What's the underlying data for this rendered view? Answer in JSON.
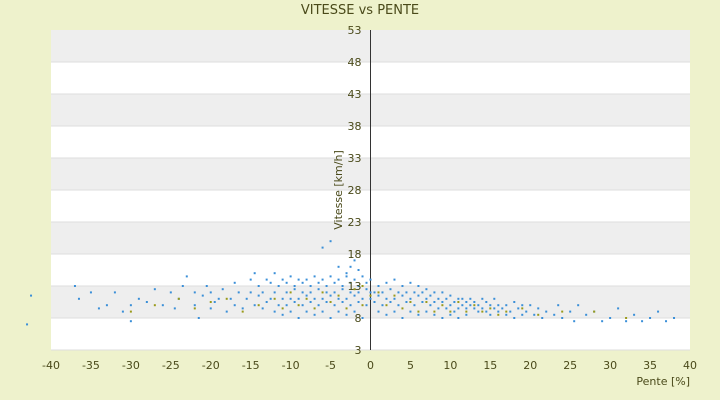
{
  "chart_data": {
    "type": "scatter",
    "title": "VITESSE vs PENTE",
    "xlabel": "Pente [%]",
    "ylabel": "Vitesse [km/h]",
    "xlim": [
      -40,
      40
    ],
    "ylim": [
      3,
      53
    ],
    "x_ticks": [
      "-40",
      "-35",
      "-30",
      "-25",
      "-20",
      "-15",
      "-10",
      "-5",
      "0",
      "5",
      "10",
      "15",
      "20",
      "25",
      "30",
      "35",
      "40"
    ],
    "y_ticks": [
      "3",
      "8",
      "13",
      "18",
      "23",
      "28",
      "33",
      "38",
      "43",
      "48",
      "53"
    ],
    "grid": true,
    "legend": "none",
    "series": [
      {
        "color": "#3a8fd8",
        "points": [
          [
            -43,
            7
          ],
          [
            -42.5,
            11.5
          ],
          [
            -37,
            13
          ],
          [
            -36.5,
            11
          ],
          [
            -35,
            12
          ],
          [
            -34,
            9.5
          ],
          [
            -33,
            10
          ],
          [
            -32,
            12
          ],
          [
            -31,
            9
          ],
          [
            -30,
            7.5
          ],
          [
            -30,
            10
          ],
          [
            -29,
            11
          ],
          [
            -28,
            10.5
          ],
          [
            -27,
            12.5
          ],
          [
            -26,
            10
          ],
          [
            -25,
            12
          ],
          [
            -24.5,
            9.5
          ],
          [
            -24,
            11
          ],
          [
            -23.5,
            13
          ],
          [
            -23,
            14.5
          ],
          [
            -22,
            12
          ],
          [
            -22,
            10
          ],
          [
            -21.5,
            8
          ],
          [
            -21,
            11.5
          ],
          [
            -20.5,
            13
          ],
          [
            -20,
            9.5
          ],
          [
            -20,
            12
          ],
          [
            -19.5,
            10.5
          ],
          [
            -19,
            11
          ],
          [
            -18.5,
            12.5
          ],
          [
            -18,
            9
          ],
          [
            -17.5,
            11
          ],
          [
            -17,
            13.5
          ],
          [
            -17,
            10
          ],
          [
            -16.5,
            12
          ],
          [
            -16,
            9.5
          ],
          [
            -15.5,
            11
          ],
          [
            -15,
            14
          ],
          [
            -15,
            12
          ],
          [
            -14.5,
            10
          ],
          [
            -14.5,
            15
          ],
          [
            -14,
            11.5
          ],
          [
            -14,
            13
          ],
          [
            -13.5,
            9.5
          ],
          [
            -13.5,
            12
          ],
          [
            -13,
            14
          ],
          [
            -13,
            10.5
          ],
          [
            -12.5,
            11
          ],
          [
            -12.5,
            13.5
          ],
          [
            -12,
            9
          ],
          [
            -12,
            12
          ],
          [
            -12,
            15
          ],
          [
            -11.5,
            10
          ],
          [
            -11.5,
            13
          ],
          [
            -11,
            11
          ],
          [
            -11,
            14
          ],
          [
            -11,
            8.5
          ],
          [
            -10.5,
            12
          ],
          [
            -10.5,
            10
          ],
          [
            -10.5,
            13.5
          ],
          [
            -10,
            11
          ],
          [
            -10,
            14.5
          ],
          [
            -10,
            9
          ],
          [
            -9.5,
            12.5
          ],
          [
            -9.5,
            10.5
          ],
          [
            -9.5,
            13
          ],
          [
            -9,
            11
          ],
          [
            -9,
            14
          ],
          [
            -9,
            8
          ],
          [
            -8.5,
            12
          ],
          [
            -8.5,
            10
          ],
          [
            -8.5,
            13.5
          ],
          [
            -8,
            11.5
          ],
          [
            -8,
            9
          ],
          [
            -8,
            14
          ],
          [
            -7.5,
            12
          ],
          [
            -7.5,
            10.5
          ],
          [
            -7.5,
            13
          ],
          [
            -7,
            11
          ],
          [
            -7,
            8.5
          ],
          [
            -7,
            14.5
          ],
          [
            -6.5,
            12.5
          ],
          [
            -6.5,
            10
          ],
          [
            -6.5,
            13.5
          ],
          [
            -6,
            11
          ],
          [
            -6,
            9
          ],
          [
            -6,
            14
          ],
          [
            -6,
            19
          ],
          [
            -5.5,
            12
          ],
          [
            -5.5,
            10.5
          ],
          [
            -5.5,
            13
          ],
          [
            -5,
            11.5
          ],
          [
            -5,
            8
          ],
          [
            -5,
            14.5
          ],
          [
            -5,
            20
          ],
          [
            -4.5,
            12
          ],
          [
            -4.5,
            10
          ],
          [
            -4.5,
            13.5
          ],
          [
            -4,
            11
          ],
          [
            -4,
            9
          ],
          [
            -4,
            14
          ],
          [
            -4,
            16
          ],
          [
            -3.5,
            12.5
          ],
          [
            -3.5,
            10.5
          ],
          [
            -3.5,
            13
          ],
          [
            -3,
            11
          ],
          [
            -3,
            8.5
          ],
          [
            -3,
            14.5
          ],
          [
            -3,
            15
          ],
          [
            -2.5,
            12
          ],
          [
            -2.5,
            10
          ],
          [
            -2.5,
            13.5
          ],
          [
            -2.5,
            16
          ],
          [
            -2,
            11.5
          ],
          [
            -2,
            9
          ],
          [
            -2,
            14
          ],
          [
            -2,
            17
          ],
          [
            -1.5,
            12
          ],
          [
            -1.5,
            10.5
          ],
          [
            -1.5,
            13
          ],
          [
            -1.5,
            15.5
          ],
          [
            -1,
            11
          ],
          [
            -1,
            8
          ],
          [
            -1,
            14.5
          ],
          [
            -1,
            13
          ],
          [
            -0.5,
            12.5
          ],
          [
            -0.5,
            10
          ],
          [
            -0.5,
            13.5
          ],
          [
            0,
            11
          ],
          [
            0,
            14
          ],
          [
            0,
            12
          ],
          [
            0.5,
            12
          ],
          [
            0.5,
            10.5
          ],
          [
            1,
            11.5
          ],
          [
            1,
            13
          ],
          [
            1,
            9
          ],
          [
            1.5,
            12
          ],
          [
            1.5,
            10
          ],
          [
            2,
            11
          ],
          [
            2,
            13.5
          ],
          [
            2,
            8.5
          ],
          [
            2.5,
            12.5
          ],
          [
            2.5,
            10.5
          ],
          [
            3,
            11
          ],
          [
            3,
            14
          ],
          [
            3,
            9
          ],
          [
            3.5,
            12
          ],
          [
            3.5,
            10
          ],
          [
            4,
            11.5
          ],
          [
            4,
            13
          ],
          [
            4,
            8
          ],
          [
            4.5,
            12
          ],
          [
            4.5,
            10.5
          ],
          [
            5,
            11
          ],
          [
            5,
            13.5
          ],
          [
            5,
            9
          ],
          [
            5.5,
            12
          ],
          [
            5.5,
            10
          ],
          [
            6,
            11.5
          ],
          [
            6,
            13
          ],
          [
            6,
            8.5
          ],
          [
            6.5,
            10.5
          ],
          [
            6.5,
            12
          ],
          [
            7,
            11
          ],
          [
            7,
            9
          ],
          [
            7,
            12.5
          ],
          [
            7.5,
            10
          ],
          [
            7.5,
            11.5
          ],
          [
            8,
            10.5
          ],
          [
            8,
            12
          ],
          [
            8,
            8.5
          ],
          [
            8.5,
            11
          ],
          [
            8.5,
            9.5
          ],
          [
            9,
            10.5
          ],
          [
            9,
            12
          ],
          [
            9,
            8
          ],
          [
            9.5,
            11
          ],
          [
            9.5,
            9.5
          ],
          [
            10,
            10
          ],
          [
            10,
            11.5
          ],
          [
            10,
            8.5
          ],
          [
            10.5,
            10.5
          ],
          [
            10.5,
            9
          ],
          [
            11,
            11
          ],
          [
            11,
            9.5
          ],
          [
            11,
            8
          ],
          [
            11.5,
            10
          ],
          [
            11.5,
            11
          ],
          [
            12,
            9.5
          ],
          [
            12,
            10.5
          ],
          [
            12,
            8.5
          ],
          [
            12.5,
            10
          ],
          [
            12.5,
            11
          ],
          [
            13,
            9.5
          ],
          [
            13,
            10.5
          ],
          [
            13.5,
            9
          ],
          [
            13.5,
            10
          ],
          [
            14,
            9.5
          ],
          [
            14,
            11
          ],
          [
            14.5,
            9
          ],
          [
            14.5,
            10.5
          ],
          [
            15,
            10
          ],
          [
            15,
            8.5
          ],
          [
            15.5,
            9.5
          ],
          [
            15.5,
            11
          ],
          [
            16,
            9
          ],
          [
            16,
            10
          ],
          [
            16.5,
            9.5
          ],
          [
            17,
            10
          ],
          [
            17,
            8.5
          ],
          [
            17.5,
            9
          ],
          [
            18,
            10.5
          ],
          [
            18,
            8
          ],
          [
            18.5,
            9.5
          ],
          [
            19,
            10
          ],
          [
            19,
            8.5
          ],
          [
            19.5,
            9
          ],
          [
            20,
            10
          ],
          [
            20.5,
            8.5
          ],
          [
            21,
            9.5
          ],
          [
            21.5,
            8
          ],
          [
            22,
            9
          ],
          [
            23,
            8.5
          ],
          [
            23.5,
            10
          ],
          [
            24,
            8
          ],
          [
            25,
            9
          ],
          [
            25.5,
            7.5
          ],
          [
            26,
            10
          ],
          [
            27,
            8.5
          ],
          [
            28,
            9
          ],
          [
            29,
            7.5
          ],
          [
            30,
            8
          ],
          [
            31,
            9.5
          ],
          [
            32,
            7.5
          ],
          [
            33,
            8.5
          ],
          [
            34,
            7.5
          ],
          [
            35,
            8
          ],
          [
            36,
            9
          ],
          [
            37,
            7.5
          ],
          [
            38,
            8
          ]
        ]
      },
      {
        "color": "#9a9a1a",
        "points": [
          [
            -30,
            9
          ],
          [
            -27,
            10
          ],
          [
            -24,
            11
          ],
          [
            -22,
            9.5
          ],
          [
            -20,
            10.5
          ],
          [
            -18,
            11
          ],
          [
            -16,
            9
          ],
          [
            -14,
            10
          ],
          [
            -12,
            11
          ],
          [
            -11,
            9.5
          ],
          [
            -10,
            12
          ],
          [
            -9,
            10
          ],
          [
            -8,
            11
          ],
          [
            -7,
            9.5
          ],
          [
            -6,
            12
          ],
          [
            -5,
            10.5
          ],
          [
            -4,
            11.5
          ],
          [
            -3,
            9.5
          ],
          [
            -2,
            12.5
          ],
          [
            -1,
            10
          ],
          [
            -1,
            13
          ],
          [
            0,
            11.5
          ],
          [
            1,
            12
          ],
          [
            2,
            10
          ],
          [
            3,
            11.5
          ],
          [
            4,
            9.5
          ],
          [
            5,
            10.5
          ],
          [
            6,
            9
          ],
          [
            7,
            10.5
          ],
          [
            8,
            9
          ],
          [
            9,
            10
          ],
          [
            10,
            9
          ],
          [
            11,
            10.5
          ],
          [
            12,
            9
          ],
          [
            13,
            10
          ],
          [
            14,
            9
          ],
          [
            15,
            9.5
          ],
          [
            16,
            8.5
          ],
          [
            17,
            9
          ],
          [
            19,
            9.5
          ],
          [
            21,
            8.5
          ],
          [
            24,
            9
          ],
          [
            28,
            9
          ],
          [
            32,
            8
          ]
        ]
      }
    ]
  }
}
